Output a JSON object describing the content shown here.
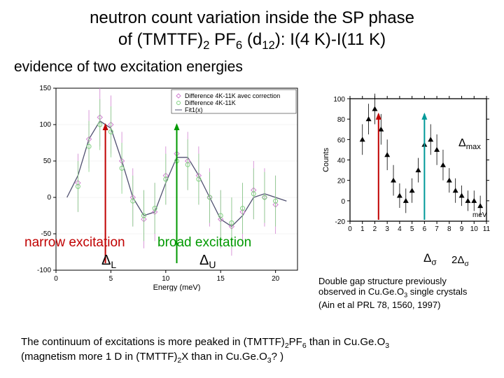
{
  "title_line1": "neutron count variation inside the SP phase",
  "title_line2_prefix": "of (TMTTF)",
  "title_line2_mid": " PF",
  "title_line2_d": " (d",
  "title_line2_suffix": "): I(4 K)-I(11 K)",
  "subtitle": "evidence of two excitation energies",
  "narrow_label": "narrow excitation",
  "broad_label": "broad excitation",
  "delta_L": "Δ",
  "delta_L_sub": "L",
  "delta_U": "Δ",
  "delta_U_sub": "U",
  "delta_max": "Δ",
  "delta_max_sub": "max",
  "delta_sigma": "Δ",
  "delta_sigma_sub": "σ",
  "two_delta_sigma_pre": "2Δ",
  "two_delta_sigma_sub": "σ",
  "caption_right_l1": "Double gap structure previously",
  "caption_right_l2": "observed in Cu.Ge.O",
  "caption_right_l2b": " single crystals",
  "caption_right_l3": "(Ain et al PRL 78, 1560, 1997)",
  "footer_l1a": "The continuum of excitations is more peaked in (TMTTF)",
  "footer_l1b": "PF",
  "footer_l1c": " than in Cu.Ge.O",
  "footer_l2a": "(magnetism more 1 D in (TMTTF)",
  "footer_l2b": "X than in Cu.Ge.O",
  "footer_l2c": "? )",
  "left_chart": {
    "type": "scatter-with-fit",
    "xlabel": "Energy (meV)",
    "xlim": [
      0,
      22
    ],
    "xticks": [
      0,
      5,
      10,
      15,
      20
    ],
    "ylim": [
      -100,
      150
    ],
    "yticks": [
      -100,
      -50,
      0,
      50,
      100,
      150
    ],
    "legend": [
      "Difference 4K-11K avec correction",
      "Difference 4K-11K",
      "Fit1(x)"
    ],
    "series1": {
      "color": "#d080d0",
      "marker": "diamond",
      "x": [
        2,
        3,
        4,
        5,
        6,
        7,
        8,
        9,
        10,
        11,
        12,
        13,
        14,
        15,
        16,
        17,
        18,
        19,
        20
      ],
      "y": [
        20,
        80,
        110,
        100,
        50,
        0,
        -30,
        -20,
        30,
        60,
        50,
        30,
        0,
        -30,
        -40,
        -20,
        10,
        0,
        -10
      ],
      "err": [
        40,
        40,
        40,
        40,
        40,
        40,
        40,
        40,
        40,
        40,
        40,
        40,
        40,
        40,
        40,
        40,
        40,
        40,
        40
      ]
    },
    "series2": {
      "color": "#80d080",
      "marker": "circle",
      "x": [
        2,
        3,
        4,
        5,
        6,
        7,
        8,
        9,
        10,
        11,
        12,
        13,
        14,
        15,
        16,
        17,
        18,
        19,
        20
      ],
      "y": [
        15,
        70,
        100,
        90,
        40,
        -5,
        -25,
        -15,
        25,
        50,
        45,
        25,
        0,
        -25,
        -35,
        -15,
        5,
        0,
        -5
      ],
      "err": [
        35,
        35,
        35,
        35,
        35,
        35,
        35,
        35,
        35,
        35,
        35,
        35,
        35,
        35,
        35,
        35,
        35,
        35,
        35
      ]
    },
    "fit": {
      "color": "#505070",
      "x": [
        1,
        2,
        3,
        4,
        5,
        6,
        7,
        8,
        9,
        10,
        11,
        12,
        13,
        14,
        15,
        16,
        17,
        18,
        19,
        20,
        21
      ],
      "y": [
        0,
        30,
        80,
        105,
        95,
        50,
        0,
        -25,
        -20,
        20,
        55,
        55,
        30,
        0,
        -30,
        -40,
        -25,
        0,
        5,
        0,
        -5
      ]
    },
    "narrow_arrow": {
      "x": 4.5,
      "color": "#c00000"
    },
    "broad_arrow": {
      "x": 11,
      "color": "#009900"
    },
    "grid_color": "#e8e8e8",
    "axis_color": "#000000"
  },
  "right_chart": {
    "type": "scatter",
    "ylabel": "Counts",
    "xlabel_unit": "meV",
    "xlim": [
      0,
      11
    ],
    "xticks": [
      0,
      1,
      2,
      3,
      4,
      5,
      6,
      7,
      8,
      9,
      10,
      11
    ],
    "ylim": [
      -20,
      100
    ],
    "yticks": [
      -20,
      0,
      20,
      40,
      60,
      80,
      100
    ],
    "marker_color": "#000000",
    "marker": "triangle",
    "x": [
      1,
      1.5,
      2,
      2.5,
      3,
      3.5,
      4,
      4.5,
      5,
      5.5,
      6,
      6.5,
      7,
      7.5,
      8,
      8.5,
      9,
      9.5,
      10,
      10.5
    ],
    "y": [
      60,
      80,
      90,
      70,
      45,
      20,
      5,
      0,
      10,
      30,
      55,
      60,
      50,
      35,
      20,
      10,
      5,
      0,
      0,
      -5
    ],
    "err": [
      15,
      15,
      15,
      15,
      15,
      15,
      12,
      12,
      12,
      12,
      15,
      15,
      15,
      15,
      12,
      12,
      10,
      10,
      10,
      10
    ],
    "sigma_arrow": {
      "x": 2.3,
      "color": "#c00000"
    },
    "two_sigma_arrow": {
      "x": 6.0,
      "color": "#009999"
    }
  }
}
